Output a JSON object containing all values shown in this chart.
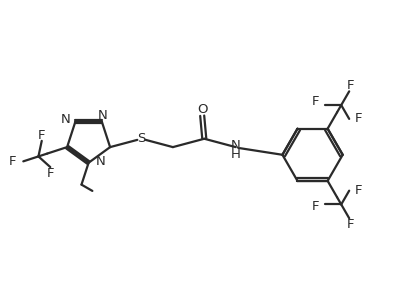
{
  "background": "#ffffff",
  "line_color": "#2a2a2a",
  "bond_lw": 1.6,
  "font_size": 9.5,
  "fig_width": 4.2,
  "fig_height": 2.97,
  "dpi": 100,
  "xlim": [
    0,
    10
  ],
  "ylim": [
    0,
    7
  ]
}
